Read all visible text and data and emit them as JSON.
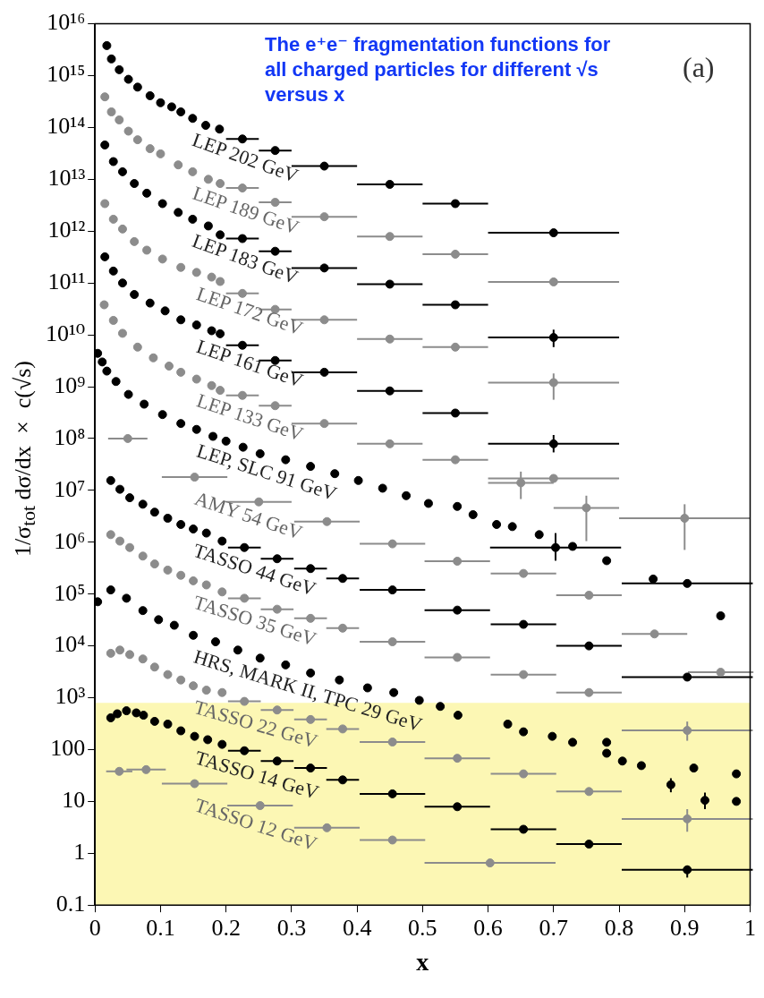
{
  "chart_data": {
    "type": "scatter",
    "title": "The e⁺e⁻ fragmentation functions for all charged particles for different √s versus x",
    "xlabel": "x",
    "ylabel": "1/σ$_{tot}$ dσ/dx × c(√s)",
    "annotations": [
      "(a)"
    ],
    "log": "y",
    "marker": "circle",
    "xlim": [
      0,
      1
    ],
    "xticks": [
      0,
      0.1,
      0.2,
      0.3,
      0.4,
      0.5,
      0.6,
      0.7,
      0.8,
      0.9,
      1
    ],
    "ylim": [
      0.1,
      1e+16
    ],
    "yticks": [
      0.1,
      1,
      10,
      100,
      {
        "value": 1000,
        "label": "10³"
      },
      {
        "value": 10000.0,
        "label": "10⁴"
      },
      {
        "value": 100000.0,
        "label": "10⁵"
      },
      {
        "value": 1000000.0,
        "label": "10⁶"
      },
      {
        "value": 10000000.0,
        "label": "10⁷"
      },
      {
        "value": 100000000.0,
        "label": "10⁸"
      },
      {
        "value": 1000000000.0,
        "label": "10⁹"
      },
      {
        "value": 10000000000.0,
        "label": "10¹⁰"
      },
      {
        "value": 100000000000.0,
        "label": "10¹¹"
      },
      {
        "value": 1000000000000.0,
        "label": "10¹²"
      },
      {
        "value": 10000000000000.0,
        "label": "10¹³"
      },
      {
        "value": 100000000000000.0,
        "label": "10¹⁴"
      },
      {
        "value": 1000000000000000.0,
        "label": "10¹⁵"
      },
      {
        "value": 1e+16,
        "label": "10¹⁶"
      }
    ],
    "bands": [
      {
        "axis": "y",
        "from": 0.1,
        "to": 800,
        "color": "#fcf7b4"
      }
    ],
    "series": [
      {
        "name": "LEP 202 GeV",
        "color": "#000000",
        "x": [
          0.018,
          0.025,
          0.037,
          0.051,
          0.065,
          0.084,
          0.1,
          0.117,
          0.131,
          0.149,
          0.169,
          0.19,
          0.225,
          0.275,
          0.35,
          0.45,
          0.55,
          0.7
        ],
        "values": [
          3800000000000000.0,
          2100000000000000.0,
          1300000000000000.0,
          850000000000000.0,
          600000000000000.0,
          410000000000000.0,
          300000000000000.0,
          250000000000000.0,
          200000000000000.0,
          150000000000000.0,
          110000000000000.0,
          93000000000000.0,
          60000000000000.0,
          36000000000000.0,
          18000000000000.0,
          8000000000000.0,
          3400000000000.0,
          930000000000.0
        ],
        "xerrors": [
          null,
          null,
          null,
          null,
          null,
          null,
          null,
          null,
          null,
          null,
          null,
          null,
          0.025,
          0.025,
          0.05,
          0.05,
          0.05,
          0.1
        ]
      },
      {
        "name": "LEP 189 GeV",
        "color": "#8c8c8c",
        "x": [
          0.015,
          0.025,
          0.037,
          0.051,
          0.065,
          0.084,
          0.1,
          0.127,
          0.149,
          0.173,
          0.191,
          0.225,
          0.275,
          0.35,
          0.45,
          0.55,
          0.7
        ],
        "values": [
          390000000000000.0,
          200000000000000.0,
          140000000000000.0,
          85000000000000.0,
          58000000000000.0,
          39000000000000.0,
          31000000000000.0,
          19000000000000.0,
          14000000000000.0,
          10000000000000.0,
          8300000000000.0,
          6800000000000.0,
          3600000000000.0,
          1900000000000.0,
          790000000000.0,
          360000000000.0,
          105000000000.0
        ],
        "xerrors": [
          null,
          null,
          null,
          null,
          null,
          null,
          null,
          null,
          null,
          null,
          null,
          0.025,
          0.025,
          0.05,
          0.05,
          0.05,
          0.1
        ]
      },
      {
        "name": "LEP 183 GeV",
        "color": "#000000",
        "x": [
          0.015,
          0.028,
          0.042,
          0.06,
          0.079,
          0.103,
          0.127,
          0.149,
          0.173,
          0.191,
          0.225,
          0.275,
          0.35,
          0.45,
          0.55,
          0.7
        ],
        "values": [
          46000000000000.0,
          22000000000000.0,
          14000000000000.0,
          8300000000000.0,
          5400000000000.0,
          3400000000000.0,
          2300000000000.0,
          1700000000000.0,
          1260000000000.0,
          850000000000.0,
          720000000000.0,
          410000000000.0,
          195000000000.0,
          95000000000.0,
          38000000000.0,
          8900000000.0
        ],
        "xerrors": [
          null,
          null,
          null,
          null,
          null,
          null,
          null,
          null,
          null,
          null,
          0.025,
          0.025,
          0.05,
          0.05,
          0.05,
          0.1
        ],
        "errors": [
          null,
          null,
          null,
          null,
          null,
          null,
          null,
          null,
          null,
          null,
          null,
          null,
          null,
          null,
          null,
          [
            5800000000.0,
            12600000000.0
          ]
        ]
      },
      {
        "name": "LEP 172 GeV",
        "color": "#8c8c8c",
        "x": [
          0.015,
          0.028,
          0.042,
          0.06,
          0.079,
          0.103,
          0.131,
          0.155,
          0.178,
          0.191,
          0.225,
          0.275,
          0.35,
          0.45,
          0.55,
          0.7
        ],
        "values": [
          3400000000000.0,
          1700000000000.0,
          1100000000000.0,
          630000000000.0,
          430000000000.0,
          290000000000.0,
          200000000000.0,
          160000000000.0,
          130000000000.0,
          107000000000.0,
          63000000000.0,
          31000000000.0,
          19500000000.0,
          8300000000.0,
          5800000000.0,
          1200000000.0
        ],
        "xerrors": [
          null,
          null,
          null,
          null,
          null,
          null,
          null,
          null,
          null,
          null,
          0.025,
          0.025,
          0.05,
          0.05,
          0.05,
          0.1
        ],
        "errors": [
          null,
          null,
          null,
          null,
          null,
          null,
          null,
          null,
          null,
          null,
          null,
          null,
          null,
          null,
          null,
          [
            560000000.0,
            1800000000.0
          ]
        ]
      },
      {
        "name": "LEP 161 GeV",
        "color": "#000000",
        "x": [
          0.015,
          0.028,
          0.042,
          0.06,
          0.084,
          0.107,
          0.131,
          0.155,
          0.178,
          0.191,
          0.225,
          0.275,
          0.35,
          0.45,
          0.55,
          0.7
        ],
        "values": [
          320000000000.0,
          170000000000.0,
          100000000000.0,
          60000000000.0,
          41000000000.0,
          29000000000.0,
          19500000000.0,
          15500000000.0,
          12000000000.0,
          10500000000.0,
          6300000000.0,
          3200000000.0,
          1900000000.0,
          830000000.0,
          310000000.0,
          79000000.0
        ],
        "xerrors": [
          null,
          null,
          null,
          null,
          null,
          null,
          null,
          null,
          null,
          null,
          0.025,
          0.025,
          0.05,
          0.05,
          0.05,
          0.1
        ],
        "errors": [
          null,
          null,
          null,
          null,
          null,
          null,
          null,
          null,
          null,
          null,
          null,
          null,
          null,
          null,
          null,
          [
            54000000.0,
            117000000.0
          ]
        ]
      },
      {
        "name": "LEP 133 GeV",
        "color": "#8c8c8c",
        "x": [
          0.014,
          0.028,
          0.042,
          0.065,
          0.089,
          0.113,
          0.131,
          0.155,
          0.178,
          0.191,
          0.225,
          0.275,
          0.35,
          0.45,
          0.55,
          0.65,
          0.7,
          0.75,
          0.9
        ],
        "values": [
          38000000000.0,
          19000000000.0,
          10700000000.0,
          5800000000.0,
          3600000000.0,
          2500000000.0,
          1900000000.0,
          1400000000.0,
          1050000000.0,
          850000000.0,
          680000000.0,
          430000000.0,
          195000000.0,
          79000000.0,
          39000000.0,
          14000000.0,
          17000000.0,
          4600000.0,
          2900000.0
        ],
        "xerrors": [
          null,
          null,
          null,
          null,
          null,
          null,
          null,
          null,
          null,
          null,
          0.025,
          0.025,
          0.05,
          0.05,
          0.05,
          0.05,
          0.1,
          0.05,
          0.1
        ],
        "errors": [
          null,
          null,
          null,
          null,
          null,
          null,
          null,
          null,
          null,
          null,
          null,
          null,
          null,
          null,
          null,
          [
            6800000.0,
            23000000.0
          ],
          null,
          [
            1050000.0,
            7900000.0
          ],
          [
            710000.0,
            5400000.0
          ]
        ]
      },
      {
        "name": "LEP, SLC 91 GeV",
        "color": "#000000",
        "x": [
          0.004,
          0.011,
          0.018,
          0.032,
          0.051,
          0.075,
          0.103,
          0.131,
          0.155,
          0.18,
          0.2,
          0.226,
          0.252,
          0.291,
          0.329,
          0.366,
          0.402,
          0.439,
          0.475,
          0.509,
          0.553,
          0.577,
          0.613,
          0.637,
          0.678,
          0.703,
          0.729,
          0.781,
          0.852,
          0.904,
          0.955
        ],
        "values": [
          4400000000.0,
          3000000000.0,
          2000000000.0,
          1260000000.0,
          710000000.0,
          460000000.0,
          290000000.0,
          195000000.0,
          150000000.0,
          110000000.0,
          89000000.0,
          68000000.0,
          51000000.0,
          39000000.0,
          29000000.0,
          21000000.0,
          15500000.0,
          11000000.0,
          7900000.0,
          5600000.0,
          4900000.0,
          3400000.0,
          2200000.0,
          2000000.0,
          1400000.0,
          790000.0,
          830000.0,
          440000.0,
          195000.0,
          160000.0,
          38000.0
        ],
        "xerrors": [
          null,
          null,
          null,
          null,
          null,
          null,
          null,
          null,
          null,
          null,
          null,
          null,
          null,
          null,
          null,
          null,
          null,
          null,
          null,
          null,
          null,
          null,
          null,
          null,
          null,
          0.1,
          null,
          null,
          null,
          0.1,
          null
        ],
        "errors": [
          null,
          null,
          null,
          null,
          null,
          null,
          null,
          null,
          null,
          null,
          null,
          null,
          null,
          null,
          null,
          null,
          null,
          null,
          null,
          null,
          null,
          null,
          null,
          null,
          null,
          [
            440000.0,
            1500000.0
          ],
          null,
          null,
          null,
          null,
          null
        ]
      },
      {
        "name": "AMY 54 GeV",
        "color": "#8c8c8c",
        "x": [
          0.05,
          0.152,
          0.25,
          0.354,
          0.454,
          0.553,
          0.654,
          0.754,
          0.854,
          0.955
        ],
        "values": [
          100000000.0,
          18000000.0,
          6000000.0,
          2500000.0,
          930000.0,
          430000.0,
          250000.0,
          95000.0,
          17000.0,
          3100.0
        ],
        "xerrors": [
          0.03,
          0.05,
          0.05,
          0.05,
          0.05,
          0.05,
          0.05,
          0.05,
          0.05,
          0.05
        ]
      },
      {
        "name": "TASSO 44 GeV",
        "color": "#000000",
        "x": [
          0.024,
          0.038,
          0.053,
          0.073,
          0.091,
          0.111,
          0.131,
          0.15,
          0.17,
          0.194,
          0.228,
          0.278,
          0.329,
          0.378,
          0.454,
          0.553,
          0.654,
          0.754,
          0.904
        ],
        "values": [
          15500000.0,
          10500000.0,
          7200000.0,
          5400000.0,
          3800000.0,
          2900000.0,
          2200000.0,
          1800000.0,
          1500000.0,
          1050000.0,
          790000.0,
          480000.0,
          310000.0,
          200000.0,
          120000.0,
          49000.0,
          26000.0,
          10000.0,
          2500.0
        ],
        "xerrors": [
          null,
          null,
          null,
          null,
          null,
          null,
          null,
          null,
          null,
          null,
          0.025,
          0.025,
          0.025,
          0.025,
          0.05,
          0.05,
          0.05,
          0.05,
          0.1
        ]
      },
      {
        "name": "TASSO 35 GeV",
        "color": "#8c8c8c",
        "x": [
          0.024,
          0.038,
          0.053,
          0.073,
          0.091,
          0.111,
          0.131,
          0.15,
          0.17,
          0.194,
          0.228,
          0.278,
          0.329,
          0.378,
          0.454,
          0.553,
          0.654,
          0.754,
          0.904
        ],
        "values": [
          1400000.0,
          1050000.0,
          790000.0,
          540000.0,
          380000.0,
          290000.0,
          230000.0,
          180000.0,
          150000.0,
          110000.0,
          83000.0,
          51000.0,
          34000.0,
          22000.0,
          12000.0,
          6000.0,
          2800.0,
          1260.0,
          234
        ],
        "xerrors": [
          null,
          null,
          null,
          null,
          null,
          null,
          null,
          null,
          null,
          null,
          0.025,
          0.025,
          0.025,
          0.025,
          0.05,
          0.05,
          0.05,
          0.05,
          0.1
        ],
        "errors": [
          null,
          null,
          null,
          null,
          null,
          null,
          null,
          null,
          null,
          null,
          null,
          null,
          null,
          null,
          null,
          null,
          null,
          null,
          [
            148,
            347
          ]
        ]
      },
      {
        "name": "HRS, MARK II, TPC 29 GeV",
        "color": "#000000",
        "x": [
          0.004,
          0.024,
          0.048,
          0.073,
          0.097,
          0.121,
          0.15,
          0.184,
          0.218,
          0.252,
          0.291,
          0.329,
          0.373,
          0.416,
          0.456,
          0.495,
          0.527,
          0.554,
          0.63,
          0.654,
          0.698,
          0.729,
          0.781,
          0.781,
          0.805,
          0.834,
          0.879,
          0.914,
          0.931,
          0.979,
          0.979
        ],
        "values": [
          71000.0,
          120000.0,
          83000.0,
          48000.0,
          32000.0,
          25000.0,
          16000.0,
          12000.0,
          8300.0,
          5800.0,
          4300.0,
          3000.0,
          2200.0,
          1550.0,
          1260.0,
          890,
          680,
          460,
          310,
          220,
          180,
          138,
          138,
          85,
          60,
          49,
          21,
          44,
          10.5,
          34,
          10
        ],
        "errors": [
          null,
          null,
          null,
          null,
          null,
          null,
          null,
          null,
          null,
          null,
          null,
          null,
          null,
          null,
          null,
          null,
          null,
          null,
          null,
          null,
          null,
          null,
          null,
          null,
          null,
          null,
          [
            15,
            28
          ],
          null,
          [
            7.1,
            14.8
          ],
          null,
          null
        ]
      },
      {
        "name": "TASSO 22 GeV",
        "color": "#8c8c8c",
        "x": [
          0.024,
          0.038,
          0.053,
          0.073,
          0.091,
          0.111,
          0.131,
          0.15,
          0.17,
          0.194,
          0.228,
          0.278,
          0.329,
          0.378,
          0.454,
          0.553,
          0.654,
          0.754,
          0.904
        ],
        "values": [
          7200.0,
          8300.0,
          6800.0,
          5600.0,
          3900.0,
          2800.0,
          2200.0,
          1700.0,
          1400.0,
          1260.0,
          850,
          580,
          380,
          250,
          140,
          68,
          34,
          15.5,
          4.6
        ],
        "xerrors": [
          null,
          null,
          null,
          null,
          null,
          null,
          null,
          null,
          null,
          null,
          0.025,
          0.025,
          0.025,
          0.025,
          0.05,
          0.05,
          0.05,
          0.05,
          0.1
        ],
        "errors": [
          null,
          null,
          null,
          null,
          null,
          null,
          null,
          null,
          null,
          null,
          null,
          null,
          null,
          null,
          null,
          null,
          null,
          null,
          [
            2.6,
            7.1
          ]
        ]
      },
      {
        "name": "TASSO 14 GeV",
        "color": "#000000",
        "x": [
          0.024,
          0.034,
          0.048,
          0.063,
          0.074,
          0.091,
          0.111,
          0.131,
          0.152,
          0.172,
          0.194,
          0.228,
          0.278,
          0.329,
          0.378,
          0.454,
          0.553,
          0.654,
          0.754,
          0.904
        ],
        "values": [
          410,
          490,
          560,
          510,
          460,
          350,
          310,
          230,
          180,
          155,
          126,
          95,
          60,
          44,
          26,
          14,
          7.9,
          2.9,
          1.5,
          0.48
        ],
        "xerrors": [
          null,
          null,
          null,
          null,
          null,
          null,
          null,
          null,
          null,
          null,
          null,
          0.025,
          0.025,
          0.025,
          0.025,
          0.05,
          0.05,
          0.05,
          0.05,
          0.1
        ],
        "errors": [
          null,
          null,
          null,
          null,
          null,
          null,
          null,
          null,
          null,
          null,
          null,
          null,
          null,
          null,
          null,
          null,
          null,
          null,
          null,
          [
            0.34,
            0.58
          ]
        ]
      },
      {
        "name": "TASSO 12 GeV",
        "color": "#8c8c8c",
        "x": [
          0.037,
          0.078,
          0.152,
          0.252,
          0.354,
          0.454,
          0.603
        ],
        "values": [
          38,
          41,
          22,
          8.3,
          3.1,
          1.8,
          0.65
        ],
        "xerrors": [
          0.02,
          0.03,
          0.05,
          0.05,
          0.05,
          0.05,
          0.1
        ]
      }
    ]
  }
}
